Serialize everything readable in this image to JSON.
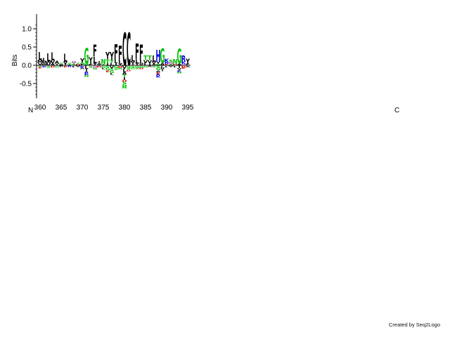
{
  "chart_data": {
    "type": "sequence-logo",
    "ylabel": "Bits",
    "ylim": [
      -0.9,
      1.2
    ],
    "yticks": [
      -0.5,
      0.0,
      0.5,
      1.0
    ],
    "ytick_labels": [
      "-0.5",
      "0.0",
      "0.5",
      "1.0"
    ],
    "x_start": 360,
    "x_end": 395,
    "xticks": [
      360,
      365,
      370,
      375,
      380,
      385,
      390,
      395
    ],
    "xtick_labels": [
      "360",
      "365",
      "370",
      "375",
      "380",
      "385",
      "390",
      "395"
    ],
    "n_terminus_label": "N",
    "c_terminus_label": "C",
    "colors": {
      "hydrophobic": "#000000",
      "polar": "#00c000",
      "positive": "#0000dd",
      "negative": "#dd0000",
      "amide": "#cc33cc",
      "neutral": "#00a0a0"
    },
    "positions": [
      {
        "pos": 360,
        "letters": [
          {
            "aa": "L",
            "bits": 0.22
          },
          {
            "aa": "M",
            "bits": 0.08
          },
          {
            "aa": "V",
            "bits": 0.06
          }
        ],
        "depleted": [
          {
            "aa": "S",
            "bits": 0.04
          },
          {
            "aa": "E",
            "bits": 0.03
          }
        ]
      },
      {
        "pos": 361,
        "letters": [
          {
            "aa": "L",
            "bits": 0.1
          },
          {
            "aa": "V",
            "bits": 0.06
          },
          {
            "aa": "M",
            "bits": 0.05
          }
        ],
        "depleted": [
          {
            "aa": "K",
            "bits": 0.04
          }
        ]
      },
      {
        "pos": 362,
        "letters": [
          {
            "aa": "L",
            "bits": 0.22
          },
          {
            "aa": "W",
            "bits": 0.06
          },
          {
            "aa": "V",
            "bits": 0.05
          }
        ],
        "depleted": [
          {
            "aa": "S",
            "bits": 0.05
          }
        ]
      },
      {
        "pos": 363,
        "letters": [
          {
            "aa": "L",
            "bits": 0.22
          },
          {
            "aa": "V",
            "bits": 0.08
          },
          {
            "aa": "A",
            "bits": 0.05
          }
        ],
        "depleted": [
          {
            "aa": "D",
            "bits": 0.04
          }
        ]
      },
      {
        "pos": 364,
        "letters": [
          {
            "aa": "A",
            "bits": 0.08
          },
          {
            "aa": "I",
            "bits": 0.04
          }
        ],
        "depleted": [
          {
            "aa": "G",
            "bits": 0.04
          }
        ]
      },
      {
        "pos": 365,
        "letters": [
          {
            "aa": "S",
            "bits": 0.04
          },
          {
            "aa": "A",
            "bits": 0.03
          }
        ],
        "depleted": [
          {
            "aa": "P",
            "bits": 0.03
          }
        ]
      },
      {
        "pos": 366,
        "letters": [
          {
            "aa": "L",
            "bits": 0.22
          },
          {
            "aa": "V",
            "bits": 0.06
          },
          {
            "aa": "I",
            "bits": 0.04
          }
        ],
        "depleted": [
          {
            "aa": "E",
            "bits": 0.04
          }
        ]
      },
      {
        "pos": 367,
        "letters": [
          {
            "aa": "S",
            "bits": 0.04
          },
          {
            "aa": "T",
            "bits": 0.03
          }
        ],
        "depleted": [
          {
            "aa": "R",
            "bits": 0.03
          }
        ]
      },
      {
        "pos": 368,
        "letters": [
          {
            "aa": "Q",
            "bits": 0.05
          },
          {
            "aa": "T",
            "bits": 0.04
          },
          {
            "aa": "S",
            "bits": 0.03
          }
        ],
        "depleted": [
          {
            "aa": "L",
            "bits": 0.04
          }
        ]
      },
      {
        "pos": 369,
        "letters": [
          {
            "aa": "T",
            "bits": 0.04
          },
          {
            "aa": "D",
            "bits": 0.03
          }
        ],
        "depleted": [
          {
            "aa": "V",
            "bits": 0.03
          }
        ]
      },
      {
        "pos": 370,
        "letters": [
          {
            "aa": "Y",
            "bits": 0.13
          },
          {
            "aa": "N",
            "bits": 0.04
          },
          {
            "aa": "F",
            "bits": 0.03
          }
        ],
        "depleted": [
          {
            "aa": "K",
            "bits": 0.05
          },
          {
            "aa": "A",
            "bits": 0.04
          }
        ]
      },
      {
        "pos": 371,
        "letters": [
          {
            "aa": "G",
            "bits": 0.42
          },
          {
            "aa": "N",
            "bits": 0.05
          }
        ],
        "depleted": [
          {
            "aa": "L",
            "bits": 0.08
          },
          {
            "aa": "I",
            "bits": 0.07
          },
          {
            "aa": "R",
            "bits": 0.05
          },
          {
            "aa": "K",
            "bits": 0.05
          },
          {
            "aa": "N",
            "bits": 0.05
          }
        ]
      },
      {
        "pos": 372,
        "letters": [
          {
            "aa": "Y",
            "bits": 0.14
          },
          {
            "aa": "I",
            "bits": 0.05
          },
          {
            "aa": "F",
            "bits": 0.04
          }
        ],
        "depleted": [
          {
            "aa": "S",
            "bits": 0.05
          }
        ]
      },
      {
        "pos": 373,
        "letters": [
          {
            "aa": "F",
            "bits": 0.32
          },
          {
            "aa": "L",
            "bits": 0.18
          },
          {
            "aa": "Y",
            "bits": 0.06
          }
        ],
        "depleted": [
          {
            "aa": "Q",
            "bits": 0.05
          },
          {
            "aa": "G",
            "bits": 0.05
          }
        ]
      },
      {
        "pos": 374,
        "letters": [
          {
            "aa": "I",
            "bits": 0.05
          },
          {
            "aa": "Y",
            "bits": 0.04
          },
          {
            "aa": "V",
            "bits": 0.03
          }
        ],
        "depleted": [
          {
            "aa": "D",
            "bits": 0.04
          }
        ]
      },
      {
        "pos": 375,
        "letters": [
          {
            "aa": "N",
            "bits": 0.14
          },
          {
            "aa": "T",
            "bits": 0.04
          }
        ],
        "depleted": [
          {
            "aa": "G",
            "bits": 0.05
          },
          {
            "aa": "L",
            "bits": 0.04
          }
        ]
      },
      {
        "pos": 376,
        "letters": [
          {
            "aa": "Y",
            "bits": 0.2
          },
          {
            "aa": "T",
            "bits": 0.1
          },
          {
            "aa": "I",
            "bits": 0.06
          }
        ],
        "depleted": [
          {
            "aa": "S",
            "bits": 0.06
          },
          {
            "aa": "G",
            "bits": 0.06
          },
          {
            "aa": "E",
            "bits": 0.05
          }
        ]
      },
      {
        "pos": 377,
        "letters": [
          {
            "aa": "Y",
            "bits": 0.22
          },
          {
            "aa": "T",
            "bits": 0.08
          },
          {
            "aa": "L",
            "bits": 0.06
          }
        ],
        "depleted": [
          {
            "aa": "V",
            "bits": 0.07
          },
          {
            "aa": "S",
            "bits": 0.06
          },
          {
            "aa": "G",
            "bits": 0.06
          },
          {
            "aa": "L",
            "bits": 0.05
          }
        ]
      },
      {
        "pos": 378,
        "letters": [
          {
            "aa": "F",
            "bits": 0.44
          },
          {
            "aa": "L",
            "bits": 0.08
          },
          {
            "aa": "I",
            "bits": 0.06
          }
        ],
        "depleted": [
          {
            "aa": "G",
            "bits": 0.06
          },
          {
            "aa": "S",
            "bits": 0.05
          }
        ]
      },
      {
        "pos": 379,
        "letters": [
          {
            "aa": "F",
            "bits": 0.44
          },
          {
            "aa": "L",
            "bits": 0.06
          },
          {
            "aa": "Y",
            "bits": 0.05
          }
        ],
        "depleted": [
          {
            "aa": "D",
            "bits": 0.05
          },
          {
            "aa": "G",
            "bits": 0.05
          }
        ]
      },
      {
        "pos": 380,
        "letters": [
          {
            "aa": "C",
            "bits": 0.9
          }
        ],
        "depleted": [
          {
            "aa": "D",
            "bits": 0.06
          },
          {
            "aa": "S",
            "bits": 0.06
          },
          {
            "aa": "G",
            "bits": 0.06
          },
          {
            "aa": "N",
            "bits": 0.06
          },
          {
            "aa": "T",
            "bits": 0.07
          },
          {
            "aa": "I",
            "bits": 0.07
          },
          {
            "aa": "V",
            "bits": 0.08
          },
          {
            "aa": "L",
            "bits": 0.08
          },
          {
            "aa": "A",
            "bits": 0.08
          }
        ]
      },
      {
        "pos": 381,
        "letters": [
          {
            "aa": "C",
            "bits": 0.9
          }
        ],
        "depleted": [
          {
            "aa": "G",
            "bits": 0.05
          },
          {
            "aa": "S",
            "bits": 0.05
          },
          {
            "aa": "D",
            "bits": 0.04
          }
        ]
      },
      {
        "pos": 382,
        "letters": [
          {
            "aa": "L",
            "bits": 0.18
          },
          {
            "aa": "V",
            "bits": 0.06
          },
          {
            "aa": "I",
            "bits": 0.05
          }
        ],
        "depleted": [
          {
            "aa": "S",
            "bits": 0.05
          },
          {
            "aa": "G",
            "bits": 0.04
          }
        ]
      },
      {
        "pos": 383,
        "letters": [
          {
            "aa": "F",
            "bits": 0.44
          },
          {
            "aa": "L",
            "bits": 0.1
          },
          {
            "aa": "Y",
            "bits": 0.06
          }
        ],
        "depleted": [
          {
            "aa": "G",
            "bits": 0.05
          },
          {
            "aa": "S",
            "bits": 0.04
          }
        ]
      },
      {
        "pos": 384,
        "letters": [
          {
            "aa": "F",
            "bits": 0.44
          },
          {
            "aa": "L",
            "bits": 0.08
          },
          {
            "aa": "V",
            "bits": 0.05
          }
        ],
        "depleted": [
          {
            "aa": "G",
            "bits": 0.05
          },
          {
            "aa": "D",
            "bits": 0.04
          }
        ]
      },
      {
        "pos": 385,
        "letters": [
          {
            "aa": "T",
            "bits": 0.12
          },
          {
            "aa": "V",
            "bits": 0.08
          },
          {
            "aa": "L",
            "bits": 0.06
          }
        ],
        "depleted": [
          {
            "aa": "G",
            "bits": 0.04
          }
        ]
      },
      {
        "pos": 386,
        "letters": [
          {
            "aa": "T",
            "bits": 0.12
          },
          {
            "aa": "V",
            "bits": 0.08
          },
          {
            "aa": "I",
            "bits": 0.06
          }
        ],
        "depleted": [
          {
            "aa": "A",
            "bits": 0.03
          }
        ]
      },
      {
        "pos": 387,
        "letters": [
          {
            "aa": "L",
            "bits": 0.18
          },
          {
            "aa": "V",
            "bits": 0.06
          },
          {
            "aa": "A",
            "bits": 0.04
          }
        ],
        "depleted": [
          {
            "aa": "S",
            "bits": 0.04
          }
        ]
      },
      {
        "pos": 388,
        "letters": [
          {
            "aa": "H",
            "bits": 0.32
          },
          {
            "aa": "Y",
            "bits": 0.06
          },
          {
            "aa": "N",
            "bits": 0.04
          }
        ],
        "depleted": [
          {
            "aa": "S",
            "bits": 0.06
          },
          {
            "aa": "G",
            "bits": 0.06
          },
          {
            "aa": "A",
            "bits": 0.05
          },
          {
            "aa": "E",
            "bits": 0.05
          },
          {
            "aa": "R",
            "bits": 0.05
          },
          {
            "aa": "K",
            "bits": 0.05
          }
        ]
      },
      {
        "pos": 389,
        "letters": [
          {
            "aa": "G",
            "bits": 0.4
          },
          {
            "aa": "A",
            "bits": 0.06
          }
        ],
        "depleted": [
          {
            "aa": "L",
            "bits": 0.05
          },
          {
            "aa": "V",
            "bits": 0.05
          },
          {
            "aa": "I",
            "bits": 0.04
          }
        ]
      },
      {
        "pos": 390,
        "letters": [
          {
            "aa": "K",
            "bits": 0.1
          },
          {
            "aa": "R",
            "bits": 0.05
          },
          {
            "aa": "E",
            "bits": 0.04
          }
        ],
        "depleted": [
          {
            "aa": "L",
            "bits": 0.04
          }
        ]
      },
      {
        "pos": 391,
        "letters": [
          {
            "aa": "S",
            "bits": 0.06
          },
          {
            "aa": "Q",
            "bits": 0.05
          },
          {
            "aa": "T",
            "bits": 0.04
          }
        ],
        "depleted": [
          {
            "aa": "V",
            "bits": 0.03
          }
        ]
      },
      {
        "pos": 392,
        "letters": [
          {
            "aa": "N",
            "bits": 0.14
          },
          {
            "aa": "D",
            "bits": 0.04
          }
        ],
        "depleted": [
          {
            "aa": "L",
            "bits": 0.04
          }
        ]
      },
      {
        "pos": 393,
        "letters": [
          {
            "aa": "G",
            "bits": 0.4
          },
          {
            "aa": "A",
            "bits": 0.05
          }
        ],
        "depleted": [
          {
            "aa": "I",
            "bits": 0.06
          },
          {
            "aa": "V",
            "bits": 0.05
          },
          {
            "aa": "N",
            "bits": 0.04
          },
          {
            "aa": "K",
            "bits": 0.05
          }
        ]
      },
      {
        "pos": 394,
        "letters": [
          {
            "aa": "R",
            "bits": 0.18
          },
          {
            "aa": "K",
            "bits": 0.06
          },
          {
            "aa": "Q",
            "bits": 0.04
          }
        ],
        "depleted": [
          {
            "aa": "D",
            "bits": 0.04
          },
          {
            "aa": "E",
            "bits": 0.04
          }
        ]
      },
      {
        "pos": 395,
        "letters": [
          {
            "aa": "Y",
            "bits": 0.14
          },
          {
            "aa": "F",
            "bits": 0.05
          }
        ],
        "depleted": [
          {
            "aa": "A",
            "bits": 0.04
          }
        ]
      }
    ]
  },
  "footer": {
    "credit": "Created by Seq2Logo"
  }
}
